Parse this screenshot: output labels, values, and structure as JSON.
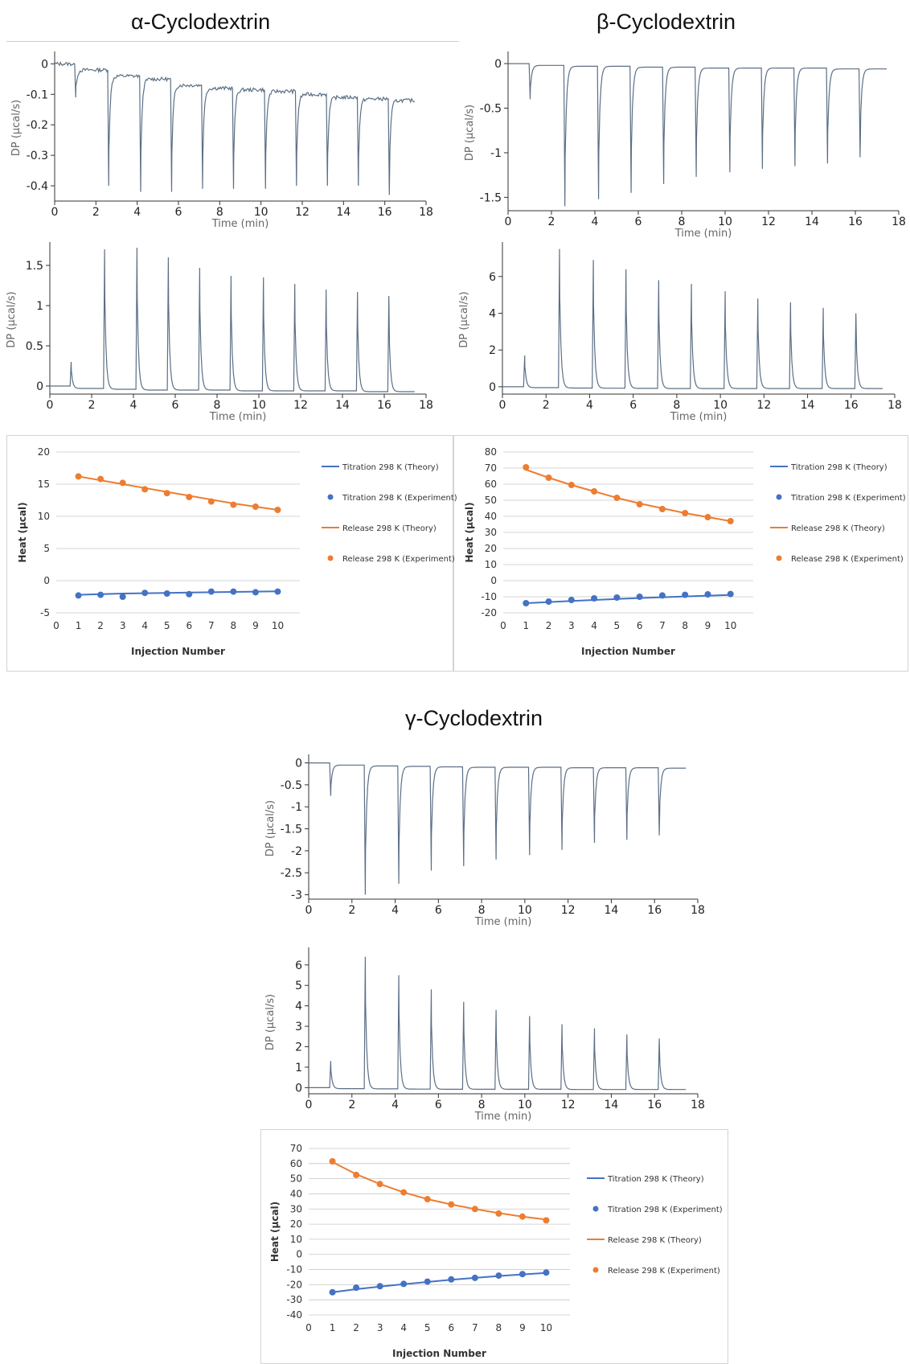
{
  "titles": [
    "α-Cyclodextrin",
    "β-Cyclodextrin",
    "γ-Cyclodextrin"
  ],
  "colors": {
    "trace": "#5b6f86",
    "titration": "#4472c4",
    "release": "#ed7d31",
    "axis": "#333333",
    "grid": "#c8c8c8"
  },
  "chart_data": [
    {
      "type": "line",
      "panel": "alpha-raw-titration",
      "xlabel": "Time (min)",
      "ylabel": "DP (µcal/s)",
      "xlim": [
        0,
        18
      ],
      "ylim": [
        -0.45,
        0.03
      ],
      "xticks": [
        0,
        2,
        4,
        6,
        8,
        10,
        12,
        14,
        16,
        18
      ],
      "yticks": [
        0,
        -0.1,
        -0.2,
        -0.3,
        -0.4
      ],
      "x_end": 17.5,
      "injection_times": [
        1.0,
        2.6,
        4.15,
        5.65,
        7.15,
        8.65,
        10.2,
        11.7,
        13.2,
        14.7,
        16.2
      ],
      "peak_values": [
        -0.11,
        -0.4,
        -0.42,
        -0.42,
        -0.41,
        -0.41,
        -0.41,
        -0.4,
        -0.4,
        -0.4,
        -0.43
      ],
      "baseline_values": [
        0.0,
        -0.02,
        -0.04,
        -0.05,
        -0.07,
        -0.08,
        -0.085,
        -0.09,
        -0.1,
        -0.11,
        -0.115,
        -0.12
      ],
      "noise": 0.006,
      "decay": 0.07
    },
    {
      "type": "line",
      "panel": "beta-raw-titration",
      "xlabel": "Time (min)",
      "ylabel": "DP (µcal/s)",
      "xlim": [
        0,
        18
      ],
      "ylim": [
        -1.65,
        0.1
      ],
      "xticks": [
        0,
        2,
        4,
        6,
        8,
        10,
        12,
        14,
        16,
        18
      ],
      "yticks": [
        0,
        -0.5,
        -1,
        -1.5
      ],
      "x_end": 17.5,
      "injection_times": [
        1.0,
        2.6,
        4.15,
        5.65,
        7.15,
        8.65,
        10.2,
        11.7,
        13.2,
        14.7,
        16.2
      ],
      "peak_values": [
        -0.4,
        -1.6,
        -1.52,
        -1.45,
        -1.35,
        -1.27,
        -1.22,
        -1.18,
        -1.15,
        -1.12,
        -1.05
      ],
      "baseline_values": [
        0.0,
        -0.02,
        -0.03,
        -0.03,
        -0.04,
        -0.04,
        -0.05,
        -0.05,
        -0.05,
        -0.05,
        -0.06,
        -0.06
      ],
      "noise": 0.0,
      "decay": 0.07
    },
    {
      "type": "line",
      "panel": "alpha-raw-release",
      "xlabel": "Time (min)",
      "ylabel": "DP (µcal/s)",
      "xlim": [
        0,
        18
      ],
      "ylim": [
        -0.1,
        1.75
      ],
      "xticks": [
        0,
        2,
        4,
        6,
        8,
        10,
        12,
        14,
        16,
        18
      ],
      "yticks": [
        0,
        0.5,
        1,
        1.5
      ],
      "x_end": 17.5,
      "injection_times": [
        1.0,
        2.6,
        4.15,
        5.65,
        7.15,
        8.65,
        10.2,
        11.7,
        13.2,
        14.7,
        16.2
      ],
      "peak_values": [
        0.3,
        1.7,
        1.72,
        1.6,
        1.47,
        1.37,
        1.35,
        1.27,
        1.2,
        1.17,
        1.12
      ],
      "baseline_values": [
        0.0,
        -0.03,
        -0.04,
        -0.05,
        -0.05,
        -0.05,
        -0.06,
        -0.06,
        -0.06,
        -0.06,
        -0.07,
        -0.07
      ],
      "noise": 0.0,
      "decay": 0.07
    },
    {
      "type": "line",
      "panel": "beta-raw-release",
      "xlabel": "Time (min)",
      "ylabel": "DP (µcal/s)",
      "xlim": [
        0,
        18
      ],
      "ylim": [
        -0.4,
        7.7
      ],
      "xticks": [
        0,
        2,
        4,
        6,
        8,
        10,
        12,
        14,
        16,
        18
      ],
      "yticks": [
        0,
        2,
        4,
        6
      ],
      "x_end": 17.5,
      "injection_times": [
        1.0,
        2.6,
        4.15,
        5.65,
        7.15,
        8.65,
        10.2,
        11.7,
        13.2,
        14.7,
        16.2
      ],
      "peak_values": [
        1.7,
        7.5,
        6.9,
        6.4,
        5.8,
        5.6,
        5.2,
        4.8,
        4.6,
        4.3,
        4.0
      ],
      "baseline_values": [
        0.0,
        -0.05,
        -0.07,
        -0.08,
        -0.09,
        -0.1,
        -0.1,
        -0.1,
        -0.1,
        -0.1,
        -0.1,
        -0.1
      ],
      "noise": 0.0,
      "decay": 0.07
    },
    {
      "type": "line",
      "panel": "gamma-raw-titration",
      "xlabel": "Time (min)",
      "ylabel": "DP (µcal/s)",
      "xlim": [
        0,
        18
      ],
      "ylim": [
        -3.1,
        0.12
      ],
      "xticks": [
        0,
        2,
        4,
        6,
        8,
        10,
        12,
        14,
        16,
        18
      ],
      "yticks": [
        0,
        -0.5,
        -1,
        -1.5,
        -2,
        -2.5,
        -3
      ],
      "x_end": 17.5,
      "injection_times": [
        1.0,
        2.6,
        4.15,
        5.65,
        7.15,
        8.65,
        10.2,
        11.7,
        13.2,
        14.7,
        16.2
      ],
      "peak_values": [
        -0.75,
        -3.0,
        -2.75,
        -2.45,
        -2.35,
        -2.2,
        -2.1,
        -1.98,
        -1.82,
        -1.75,
        -1.65
      ],
      "baseline_values": [
        0.0,
        -0.05,
        -0.07,
        -0.08,
        -0.09,
        -0.1,
        -0.1,
        -0.1,
        -0.11,
        -0.11,
        -0.11,
        -0.12
      ],
      "noise": 0.0,
      "decay": 0.07
    },
    {
      "type": "line",
      "panel": "gamma-raw-release",
      "xlabel": "Time (min)",
      "ylabel": "DP (µcal/s)",
      "xlim": [
        0,
        18
      ],
      "ylim": [
        -0.3,
        6.7
      ],
      "xticks": [
        0,
        2,
        4,
        6,
        8,
        10,
        12,
        14,
        16,
        18
      ],
      "yticks": [
        0,
        1,
        2,
        3,
        4,
        5,
        6
      ],
      "x_end": 17.5,
      "injection_times": [
        1.0,
        2.6,
        4.15,
        5.65,
        7.15,
        8.65,
        10.2,
        11.7,
        13.2,
        14.7,
        16.2
      ],
      "peak_values": [
        1.3,
        6.4,
        5.5,
        4.8,
        4.2,
        3.8,
        3.5,
        3.1,
        2.9,
        2.6,
        2.4
      ],
      "baseline_values": [
        0.0,
        -0.05,
        -0.06,
        -0.07,
        -0.08,
        -0.08,
        -0.08,
        -0.08,
        -0.09,
        -0.09,
        -0.09,
        -0.09
      ],
      "noise": 0.0,
      "decay": 0.07
    },
    {
      "type": "scatter",
      "panel": "alpha-heat",
      "xlabel": "Injection Number",
      "ylabel": "Heat (µcal)",
      "xlim": [
        0,
        11
      ],
      "ylim": [
        -5,
        20
      ],
      "xticks": [
        0,
        1,
        2,
        3,
        4,
        5,
        6,
        7,
        8,
        9,
        10
      ],
      "yticks": [
        -5,
        0,
        5,
        10,
        15,
        20
      ],
      "x": [
        1,
        2,
        3,
        4,
        5,
        6,
        7,
        8,
        9,
        10
      ],
      "series": [
        {
          "name": "Titration 298 K (Theory)",
          "kind": "line",
          "color": "#4472c4",
          "values": [
            -2.2,
            -2.1,
            -2.0,
            -1.95,
            -1.9,
            -1.85,
            -1.8,
            -1.75,
            -1.7,
            -1.65
          ]
        },
        {
          "name": "Titration 298 K (Experiment)",
          "kind": "points",
          "color": "#4472c4",
          "values": [
            -2.3,
            -2.2,
            -2.5,
            -1.9,
            -2.0,
            -2.1,
            -1.7,
            -1.7,
            -1.8,
            -1.7
          ]
        },
        {
          "name": "Release 298 K (Theory)",
          "kind": "line",
          "color": "#ed7d31",
          "values": [
            16.2,
            15.6,
            15.0,
            14.4,
            13.8,
            13.2,
            12.6,
            12.0,
            11.5,
            11.0
          ]
        },
        {
          "name": "Release 298 K (Experiment)",
          "kind": "points",
          "color": "#ed7d31",
          "values": [
            16.2,
            15.8,
            15.2,
            14.2,
            13.6,
            13.0,
            12.3,
            11.8,
            11.5,
            11.0
          ]
        }
      ]
    },
    {
      "type": "scatter",
      "panel": "beta-heat",
      "xlabel": "Injection Number",
      "ylabel": "Heat (µcal)",
      "xlim": [
        0,
        11
      ],
      "ylim": [
        -20,
        80
      ],
      "xticks": [
        0,
        1,
        2,
        3,
        4,
        5,
        6,
        7,
        8,
        9,
        10
      ],
      "yticks": [
        -20,
        -10,
        0,
        10,
        20,
        30,
        40,
        50,
        60,
        70,
        80
      ],
      "x": [
        1,
        2,
        3,
        4,
        5,
        6,
        7,
        8,
        9,
        10
      ],
      "series": [
        {
          "name": "Titration 298 K (Theory)",
          "kind": "line",
          "color": "#4472c4",
          "values": [
            -14.0,
            -13.3,
            -12.6,
            -12.0,
            -11.4,
            -10.8,
            -10.3,
            -9.8,
            -9.3,
            -8.9
          ]
        },
        {
          "name": "Titration 298 K (Experiment)",
          "kind": "points",
          "color": "#4472c4",
          "values": [
            -14.0,
            -13.0,
            -12.0,
            -11.0,
            -10.5,
            -10.0,
            -9.2,
            -8.8,
            -8.5,
            -8.3
          ]
        },
        {
          "name": "Release 298 K (Theory)",
          "kind": "line",
          "color": "#ed7d31",
          "values": [
            69.0,
            64.0,
            59.5,
            55.5,
            51.5,
            48.0,
            45.0,
            42.0,
            39.5,
            37.0
          ]
        },
        {
          "name": "Release 298 K (Experiment)",
          "kind": "points",
          "color": "#ed7d31",
          "values": [
            70.5,
            64.0,
            59.5,
            55.5,
            51.5,
            47.5,
            44.5,
            42.0,
            39.5,
            37.0
          ]
        }
      ]
    },
    {
      "type": "scatter",
      "panel": "gamma-heat",
      "xlabel": "Injection Number",
      "ylabel": "Heat (µcal)",
      "xlim": [
        0,
        11
      ],
      "ylim": [
        -40,
        70
      ],
      "xticks": [
        0,
        1,
        2,
        3,
        4,
        5,
        6,
        7,
        8,
        9,
        10
      ],
      "yticks": [
        -40,
        -30,
        -20,
        -10,
        0,
        10,
        20,
        30,
        40,
        50,
        60,
        70
      ],
      "x": [
        1,
        2,
        3,
        4,
        5,
        6,
        7,
        8,
        9,
        10
      ],
      "series": [
        {
          "name": "Titration 298 K (Theory)",
          "kind": "line",
          "color": "#4472c4",
          "values": [
            -25.0,
            -23.0,
            -21.3,
            -19.7,
            -18.2,
            -16.8,
            -15.5,
            -14.3,
            -13.2,
            -12.2
          ]
        },
        {
          "name": "Titration 298 K (Experiment)",
          "kind": "points",
          "color": "#4472c4",
          "values": [
            -25.0,
            -22.0,
            -21.0,
            -19.5,
            -18.0,
            -16.5,
            -15.5,
            -14.0,
            -13.0,
            -12.0
          ]
        },
        {
          "name": "Release 298 K (Theory)",
          "kind": "line",
          "color": "#ed7d31",
          "values": [
            61.0,
            53.0,
            46.5,
            41.0,
            36.5,
            33.0,
            30.0,
            27.3,
            25.0,
            23.0
          ]
        },
        {
          "name": "Release 298 K (Experiment)",
          "kind": "points",
          "color": "#ed7d31",
          "values": [
            61.5,
            52.5,
            46.5,
            41.0,
            36.5,
            33.0,
            30.0,
            27.0,
            25.0,
            22.5
          ]
        }
      ]
    }
  ]
}
